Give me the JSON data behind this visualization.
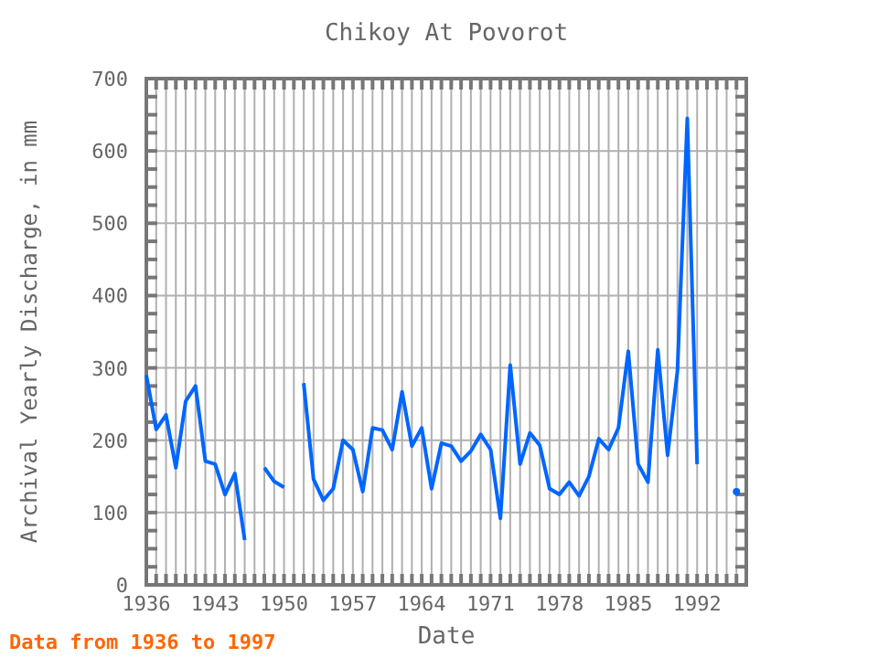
{
  "chart_data": {
    "type": "line",
    "title": "Chikoy At Povorot",
    "xlabel": "Date",
    "ylabel": "Archival Yearly Discharge, in mm",
    "annotations": [
      "Data from 1936 to 1997"
    ],
    "x": [
      1936,
      1937,
      1938,
      1939,
      1940,
      1941,
      1942,
      1943,
      1944,
      1945,
      1946,
      1947,
      1948,
      1949,
      1950,
      1951,
      1952,
      1953,
      1954,
      1955,
      1956,
      1957,
      1958,
      1959,
      1960,
      1961,
      1962,
      1963,
      1964,
      1965,
      1966,
      1967,
      1968,
      1969,
      1970,
      1971,
      1972,
      1973,
      1974,
      1975,
      1976,
      1977,
      1978,
      1979,
      1980,
      1981,
      1982,
      1983,
      1984,
      1985,
      1986,
      1987,
      1988,
      1989,
      1990,
      1991,
      1992,
      1993,
      1994,
      1995,
      1996
    ],
    "series": [
      {
        "color": "#0066ff",
        "values": [
          290,
          215,
          235,
          162,
          254,
          275,
          171,
          167,
          125,
          154,
          62,
          null,
          162,
          143,
          135,
          null,
          279,
          146,
          117,
          133,
          200,
          187,
          129,
          217,
          214,
          187,
          267,
          192,
          217,
          133,
          196,
          192,
          171,
          185,
          208,
          187,
          92,
          304,
          167,
          210,
          193,
          133,
          125,
          142,
          123,
          150,
          202,
          187,
          217,
          323,
          167,
          142,
          325,
          179,
          296,
          645,
          167,
          null,
          null,
          null,
          129
        ]
      }
    ],
    "xlim": [
      1936,
      1997
    ],
    "xticks": [
      1936,
      1943,
      1950,
      1957,
      1964,
      1971,
      1978,
      1985,
      1992
    ],
    "ylim": [
      0,
      700
    ],
    "yticks": [
      0,
      100,
      200,
      300,
      400,
      500,
      600,
      700
    ],
    "grid": true,
    "line_style": "solid"
  }
}
